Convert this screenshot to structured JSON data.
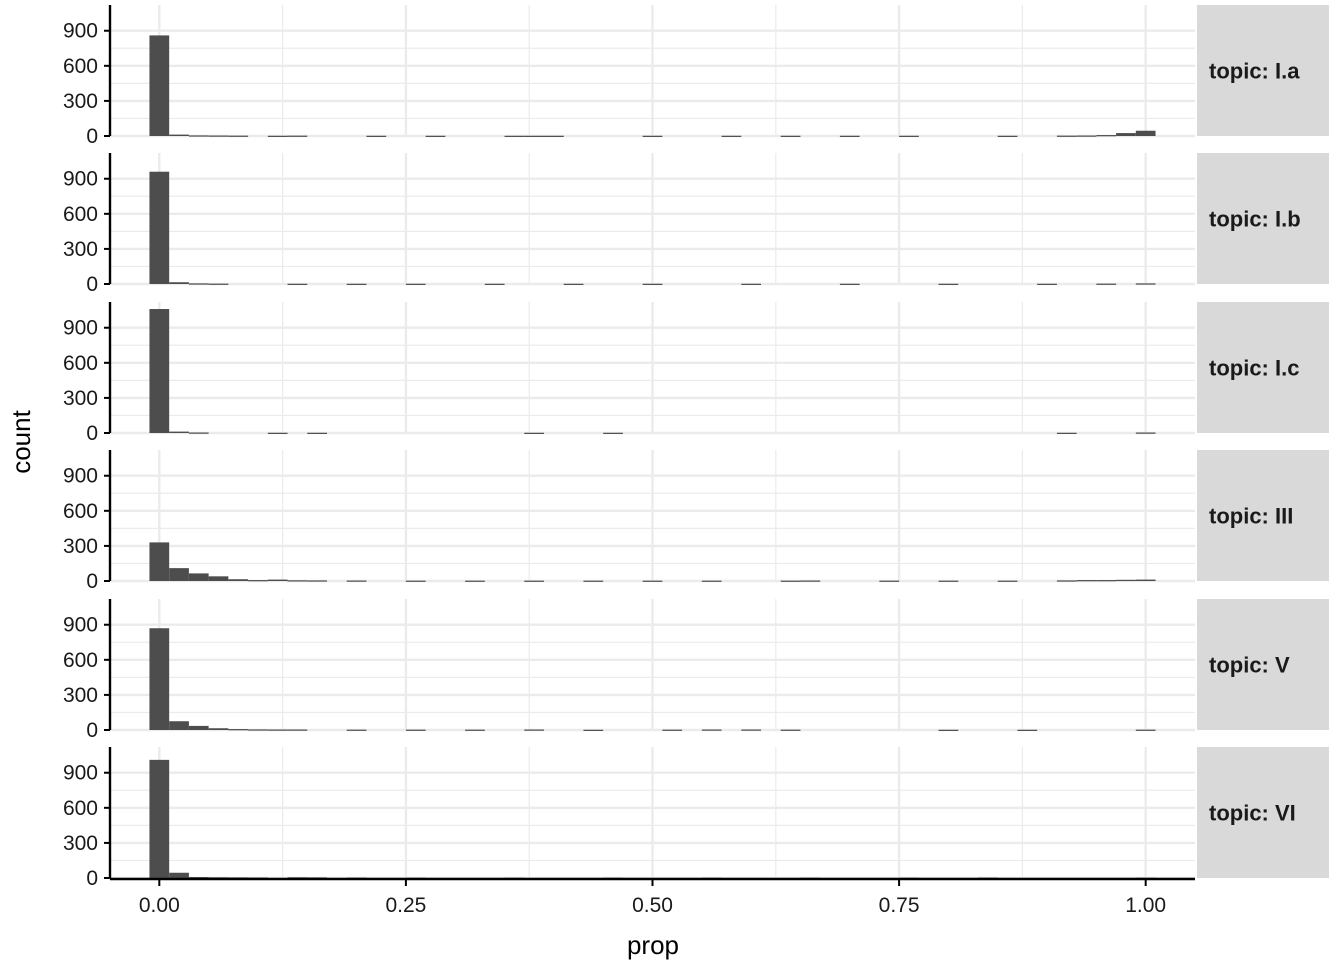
{
  "chart_data": {
    "type": "bar",
    "title": "",
    "xlabel": "prop",
    "ylabel": "count",
    "xlim": [
      -0.05,
      1.05
    ],
    "ylim": [
      0,
      1120
    ],
    "bin_width": 0.02,
    "x_ticks": [
      {
        "value": 0,
        "label": "0.00"
      },
      {
        "value": 0.25,
        "label": "0.25"
      },
      {
        "value": 0.5,
        "label": "0.50"
      },
      {
        "value": 0.75,
        "label": "0.75"
      },
      {
        "value": 1,
        "label": "1.00"
      }
    ],
    "y_ticks": [
      {
        "value": 0,
        "label": "0"
      },
      {
        "value": 300,
        "label": "300"
      },
      {
        "value": 600,
        "label": "600"
      },
      {
        "value": 900,
        "label": "900"
      }
    ],
    "grid": true,
    "colors": {
      "bar": "#4d4d4d",
      "strip": "#d9d9d9",
      "grid_major": "#ebebeb",
      "axis": "#000000"
    },
    "facets": [
      {
        "label": "topic: I.a",
        "bins": [
          {
            "x": 0.0,
            "count": 860
          },
          {
            "x": 0.02,
            "count": 12
          },
          {
            "x": 0.04,
            "count": 5
          },
          {
            "x": 0.06,
            "count": 4
          },
          {
            "x": 0.08,
            "count": 3
          },
          {
            "x": 0.12,
            "count": 2
          },
          {
            "x": 0.14,
            "count": 3
          },
          {
            "x": 0.22,
            "count": 2
          },
          {
            "x": 0.28,
            "count": 2
          },
          {
            "x": 0.36,
            "count": 2
          },
          {
            "x": 0.38,
            "count": 2
          },
          {
            "x": 0.4,
            "count": 2
          },
          {
            "x": 0.5,
            "count": 2
          },
          {
            "x": 0.58,
            "count": 2
          },
          {
            "x": 0.64,
            "count": 2
          },
          {
            "x": 0.7,
            "count": 2
          },
          {
            "x": 0.76,
            "count": 2
          },
          {
            "x": 0.86,
            "count": 2
          },
          {
            "x": 0.92,
            "count": 3
          },
          {
            "x": 0.94,
            "count": 4
          },
          {
            "x": 0.96,
            "count": 8
          },
          {
            "x": 0.98,
            "count": 25
          },
          {
            "x": 1.0,
            "count": 45
          }
        ]
      },
      {
        "label": "topic: I.b",
        "bins": [
          {
            "x": 0.0,
            "count": 960
          },
          {
            "x": 0.02,
            "count": 15
          },
          {
            "x": 0.04,
            "count": 5
          },
          {
            "x": 0.06,
            "count": 3
          },
          {
            "x": 0.14,
            "count": 2
          },
          {
            "x": 0.2,
            "count": 2
          },
          {
            "x": 0.26,
            "count": 2
          },
          {
            "x": 0.34,
            "count": 2
          },
          {
            "x": 0.42,
            "count": 2
          },
          {
            "x": 0.5,
            "count": 2
          },
          {
            "x": 0.6,
            "count": 2
          },
          {
            "x": 0.7,
            "count": 2
          },
          {
            "x": 0.8,
            "count": 2
          },
          {
            "x": 0.9,
            "count": 2
          },
          {
            "x": 0.96,
            "count": 3
          },
          {
            "x": 1.0,
            "count": 5
          }
        ]
      },
      {
        "label": "topic: I.c",
        "bins": [
          {
            "x": 0.0,
            "count": 1060
          },
          {
            "x": 0.02,
            "count": 12
          },
          {
            "x": 0.04,
            "count": 4
          },
          {
            "x": 0.12,
            "count": 2
          },
          {
            "x": 0.16,
            "count": 2
          },
          {
            "x": 0.38,
            "count": 2
          },
          {
            "x": 0.46,
            "count": 2
          },
          {
            "x": 0.92,
            "count": 2
          },
          {
            "x": 1.0,
            "count": 4
          }
        ]
      },
      {
        "label": "topic: III",
        "bins": [
          {
            "x": 0.0,
            "count": 330
          },
          {
            "x": 0.02,
            "count": 110
          },
          {
            "x": 0.04,
            "count": 65
          },
          {
            "x": 0.06,
            "count": 40
          },
          {
            "x": 0.08,
            "count": 15
          },
          {
            "x": 0.1,
            "count": 8
          },
          {
            "x": 0.12,
            "count": 12
          },
          {
            "x": 0.14,
            "count": 6
          },
          {
            "x": 0.16,
            "count": 5
          },
          {
            "x": 0.2,
            "count": 4
          },
          {
            "x": 0.26,
            "count": 3
          },
          {
            "x": 0.32,
            "count": 3
          },
          {
            "x": 0.38,
            "count": 3
          },
          {
            "x": 0.44,
            "count": 3
          },
          {
            "x": 0.5,
            "count": 3
          },
          {
            "x": 0.56,
            "count": 3
          },
          {
            "x": 0.64,
            "count": 3
          },
          {
            "x": 0.66,
            "count": 4
          },
          {
            "x": 0.74,
            "count": 3
          },
          {
            "x": 0.8,
            "count": 3
          },
          {
            "x": 0.86,
            "count": 3
          },
          {
            "x": 0.92,
            "count": 5
          },
          {
            "x": 0.94,
            "count": 8
          },
          {
            "x": 0.96,
            "count": 8
          },
          {
            "x": 0.98,
            "count": 10
          },
          {
            "x": 1.0,
            "count": 12
          }
        ]
      },
      {
        "label": "topic: V",
        "bins": [
          {
            "x": 0.0,
            "count": 870
          },
          {
            "x": 0.02,
            "count": 75
          },
          {
            "x": 0.04,
            "count": 35
          },
          {
            "x": 0.06,
            "count": 15
          },
          {
            "x": 0.08,
            "count": 8
          },
          {
            "x": 0.1,
            "count": 5
          },
          {
            "x": 0.12,
            "count": 4
          },
          {
            "x": 0.14,
            "count": 4
          },
          {
            "x": 0.2,
            "count": 3
          },
          {
            "x": 0.26,
            "count": 3
          },
          {
            "x": 0.32,
            "count": 3
          },
          {
            "x": 0.38,
            "count": 4
          },
          {
            "x": 0.44,
            "count": 2
          },
          {
            "x": 0.52,
            "count": 3
          },
          {
            "x": 0.56,
            "count": 4
          },
          {
            "x": 0.6,
            "count": 4
          },
          {
            "x": 0.64,
            "count": 3
          },
          {
            "x": 0.8,
            "count": 2
          },
          {
            "x": 0.88,
            "count": 2
          },
          {
            "x": 1.0,
            "count": 3
          }
        ]
      },
      {
        "label": "topic: VI",
        "bins": [
          {
            "x": 0.0,
            "count": 1010
          },
          {
            "x": 0.02,
            "count": 45
          },
          {
            "x": 0.04,
            "count": 8
          },
          {
            "x": 0.06,
            "count": 6
          },
          {
            "x": 0.08,
            "count": 5
          },
          {
            "x": 0.1,
            "count": 4
          },
          {
            "x": 0.14,
            "count": 6
          },
          {
            "x": 0.16,
            "count": 5
          },
          {
            "x": 0.2,
            "count": 3
          },
          {
            "x": 0.26,
            "count": 2
          },
          {
            "x": 0.36,
            "count": 2
          },
          {
            "x": 0.46,
            "count": 2
          },
          {
            "x": 0.56,
            "count": 2
          },
          {
            "x": 0.66,
            "count": 2
          },
          {
            "x": 0.76,
            "count": 2
          },
          {
            "x": 0.84,
            "count": 3
          },
          {
            "x": 1.0,
            "count": 2
          }
        ]
      }
    ]
  }
}
